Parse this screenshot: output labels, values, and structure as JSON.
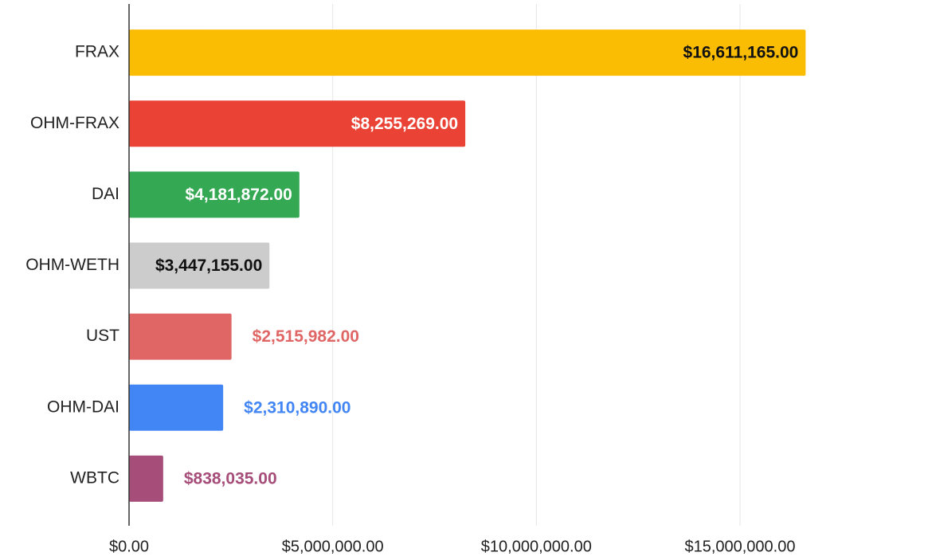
{
  "chart_data": {
    "type": "bar",
    "orientation": "horizontal",
    "categories": [
      "FRAX",
      "OHM-FRAX",
      "DAI",
      "OHM-WETH",
      "UST",
      "OHM-DAI",
      "WBTC"
    ],
    "values": [
      16611165,
      8255269,
      4181872,
      3447155,
      2515982,
      2310890,
      838035
    ],
    "value_labels": [
      "$16,611,165.00",
      "$8,255,269.00",
      "$4,181,872.00",
      "$3,447,155.00",
      "$2,515,982.00",
      "$2,310,890.00",
      "$838,035.00"
    ],
    "colors": [
      "#fbbc04",
      "#ea4335",
      "#34a853",
      "#cccccc",
      "#e06666",
      "#4285f4",
      "#a64d79"
    ],
    "xlim": [
      0,
      19000000
    ],
    "xticks": [
      {
        "value": 0,
        "label": "$0.00"
      },
      {
        "value": 5000000,
        "label": "$5,000,000.00"
      },
      {
        "value": 10000000,
        "label": "$10,000,000.00"
      },
      {
        "value": 15000000,
        "label": "$15,000,000.00"
      }
    ],
    "grid": true
  }
}
